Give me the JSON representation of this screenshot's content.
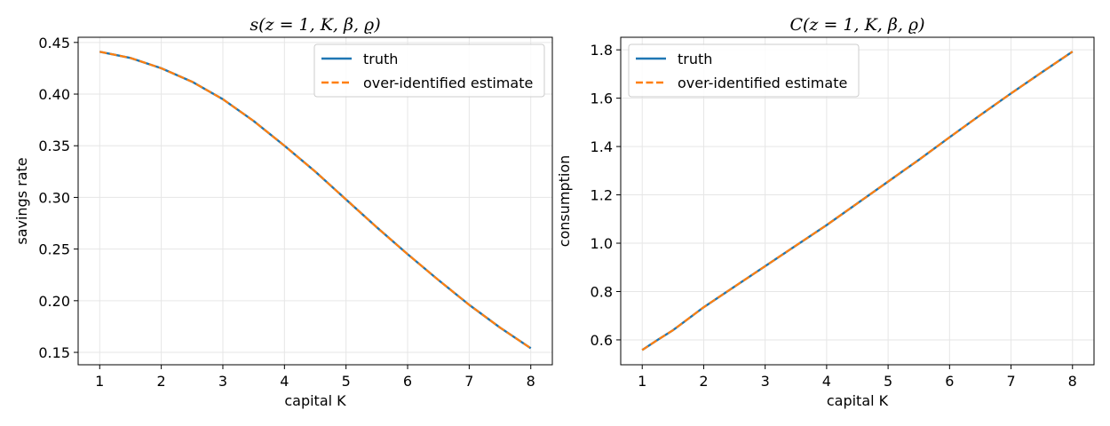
{
  "chart_data": [
    {
      "type": "line",
      "title": "s(z = 1, K, β, ϱ)",
      "xlabel": "capital K",
      "ylabel": "savings rate",
      "xlim": [
        0.65,
        8.35
      ],
      "ylim": [
        0.138,
        0.455
      ],
      "xticks": [
        1,
        2,
        3,
        4,
        5,
        6,
        7,
        8
      ],
      "yticks": [
        0.15,
        0.2,
        0.25,
        0.3,
        0.35,
        0.4,
        0.45
      ],
      "ytick_labels": [
        "0.15",
        "0.20",
        "0.25",
        "0.30",
        "0.35",
        "0.40",
        "0.45"
      ],
      "grid": true,
      "legend": "upper right",
      "x": [
        1,
        1.5,
        2,
        2.5,
        3,
        3.5,
        4,
        4.5,
        5,
        5.5,
        6,
        6.5,
        7,
        7.5,
        8
      ],
      "series": [
        {
          "name": "truth",
          "color": "#1f77b4",
          "style": "solid",
          "values": [
            0.441,
            0.435,
            0.425,
            0.412,
            0.395,
            0.374,
            0.35,
            0.325,
            0.298,
            0.271,
            0.245,
            0.22,
            0.196,
            0.174,
            0.154
          ]
        },
        {
          "name": "over-identified estimate",
          "color": "#ff7f0e",
          "style": "dashed",
          "values": [
            0.441,
            0.435,
            0.425,
            0.412,
            0.395,
            0.374,
            0.35,
            0.325,
            0.298,
            0.271,
            0.245,
            0.22,
            0.196,
            0.174,
            0.154
          ]
        }
      ]
    },
    {
      "type": "line",
      "title": "C(z = 1, K, β, ϱ)",
      "xlabel": "capital K",
      "ylabel": "consumption",
      "xlim": [
        0.65,
        8.35
      ],
      "ylim": [
        0.497,
        1.852
      ],
      "xticks": [
        1,
        2,
        3,
        4,
        5,
        6,
        7,
        8
      ],
      "yticks": [
        0.6,
        0.8,
        1.0,
        1.2,
        1.4,
        1.6,
        1.8
      ],
      "ytick_labels": [
        "0.6",
        "0.8",
        "1.0",
        "1.2",
        "1.4",
        "1.6",
        "1.8"
      ],
      "grid": true,
      "legend": "upper left",
      "x": [
        1,
        1.25,
        1.5,
        2,
        2.5,
        3,
        3.5,
        4,
        4.5,
        5,
        5.5,
        6,
        6.5,
        7,
        7.5,
        8
      ],
      "series": [
        {
          "name": "truth",
          "color": "#1f77b4",
          "style": "solid",
          "values": [
            0.558,
            0.6,
            0.64,
            0.735,
            0.82,
            0.905,
            0.99,
            1.075,
            1.165,
            1.255,
            1.345,
            1.438,
            1.53,
            1.62,
            1.707,
            1.793
          ]
        },
        {
          "name": "over-identified estimate",
          "color": "#ff7f0e",
          "style": "dashed",
          "values": [
            0.558,
            0.6,
            0.64,
            0.735,
            0.82,
            0.905,
            0.99,
            1.075,
            1.165,
            1.255,
            1.345,
            1.438,
            1.53,
            1.62,
            1.707,
            1.793
          ]
        }
      ]
    }
  ]
}
